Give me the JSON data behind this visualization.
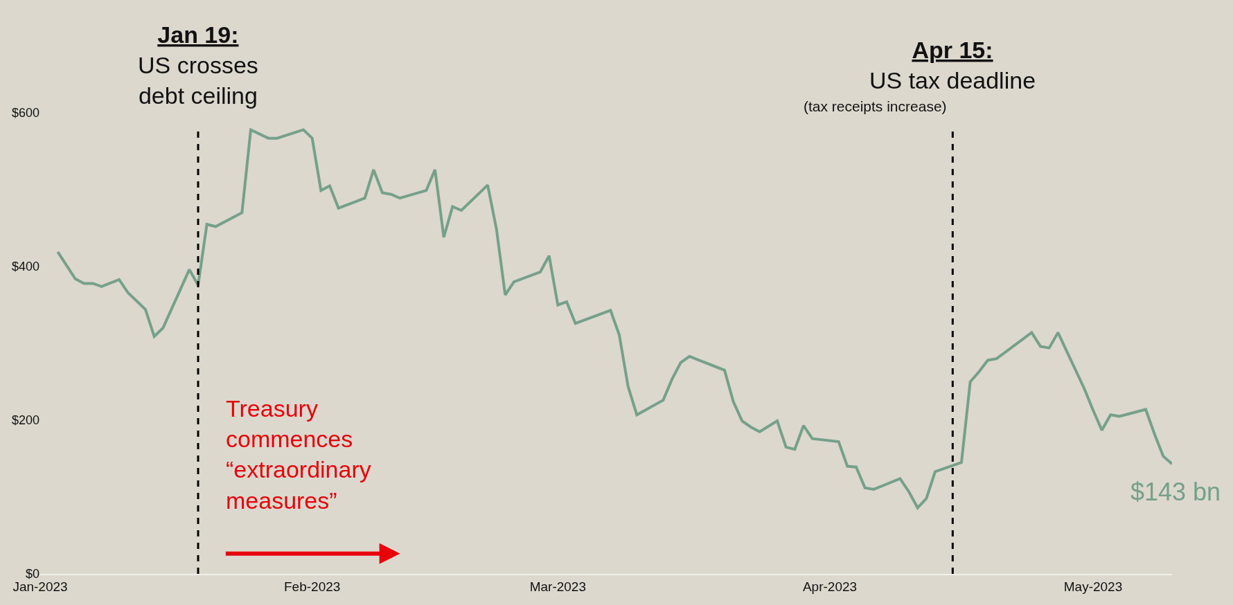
{
  "chart_data": {
    "type": "line",
    "x": [
      "2023-01-03",
      "2023-01-05",
      "2023-01-06",
      "2023-01-07",
      "2023-01-08",
      "2023-01-10",
      "2023-01-11",
      "2023-01-13",
      "2023-01-14",
      "2023-01-15",
      "2023-01-18",
      "2023-01-19",
      "2023-01-20",
      "2023-01-21",
      "2023-01-24",
      "2023-01-25",
      "2023-01-27",
      "2023-01-28",
      "2023-01-31",
      "2023-02-01",
      "2023-02-02",
      "2023-02-03",
      "2023-02-04",
      "2023-02-07",
      "2023-02-08",
      "2023-02-09",
      "2023-02-10",
      "2023-02-11",
      "2023-02-14",
      "2023-02-15",
      "2023-02-16",
      "2023-02-17",
      "2023-02-18",
      "2023-02-21",
      "2023-02-22",
      "2023-02-23",
      "2023-02-24",
      "2023-02-27",
      "2023-02-28",
      "2023-03-01",
      "2023-03-02",
      "2023-03-03",
      "2023-03-07",
      "2023-03-08",
      "2023-03-09",
      "2023-03-10",
      "2023-03-13",
      "2023-03-14",
      "2023-03-15",
      "2023-03-16",
      "2023-03-20",
      "2023-03-21",
      "2023-03-22",
      "2023-03-23",
      "2023-03-24",
      "2023-03-26",
      "2023-03-27",
      "2023-03-28",
      "2023-03-29",
      "2023-03-30",
      "2023-04-02",
      "2023-04-03",
      "2023-04-04",
      "2023-04-05",
      "2023-04-06",
      "2023-04-09",
      "2023-04-10",
      "2023-04-11",
      "2023-04-12",
      "2023-04-13",
      "2023-04-16",
      "2023-04-17",
      "2023-04-18",
      "2023-04-19",
      "2023-04-20",
      "2023-04-24",
      "2023-04-25",
      "2023-04-26",
      "2023-04-27",
      "2023-04-30",
      "2023-05-01",
      "2023-05-02",
      "2023-05-03",
      "2023-05-04",
      "2023-05-07",
      "2023-05-08",
      "2023-05-09",
      "2023-05-10"
    ],
    "series": [
      {
        "color": "#76a08a",
        "values": [
          419,
          384,
          378,
          378,
          374,
          383,
          366,
          344,
          309,
          320,
          396,
          376,
          455,
          452,
          470,
          578,
          567,
          567,
          578,
          567,
          499,
          505,
          476,
          489,
          526,
          496,
          494,
          489,
          499,
          526,
          438,
          478,
          473,
          506,
          449,
          363,
          380,
          393,
          414,
          350,
          354,
          326,
          343,
          311,
          244,
          207,
          226,
          253,
          275,
          283,
          265,
          224,
          199,
          191,
          185,
          199,
          165,
          162,
          193,
          176,
          172,
          140,
          139,
          112,
          110,
          124,
          107,
          86,
          98,
          133,
          145,
          250,
          263,
          278,
          280,
          314,
          296,
          294,
          314,
          241,
          213,
          187,
          207,
          205,
          214,
          182,
          153,
          143
        ]
      }
    ],
    "xlim": [
      "2023-01-01",
      "2023-05-10"
    ],
    "xticks": [
      {
        "value": "2023-01-01",
        "label": "Jan-2023"
      },
      {
        "value": "2023-02-01",
        "label": "Feb-2023"
      },
      {
        "value": "2023-03-01",
        "label": "Mar-2023"
      },
      {
        "value": "2023-04-01",
        "label": "Apr-2023"
      },
      {
        "value": "2023-05-01",
        "label": "May-2023"
      }
    ],
    "ylim": [
      0,
      600
    ],
    "yticks": [
      {
        "value": 0,
        "label": "$0"
      },
      {
        "value": 200,
        "label": "$200"
      },
      {
        "value": 400,
        "label": "$400"
      },
      {
        "value": 600,
        "label": "$600"
      }
    ],
    "grid": false,
    "marker": "none",
    "line_style": "solid",
    "ref_lines": [
      {
        "axis": "x",
        "value": "2023-01-19",
        "label": "Jan 19:\nUS crosses\ndebt ceiling",
        "color": "#000000",
        "line_style": "dashed"
      },
      {
        "axis": "x",
        "value": "2023-04-15",
        "label": "Apr 15:\nUS tax deadline",
        "color": "#000000",
        "line_style": "dashed"
      }
    ],
    "annotations": [
      "Treasury\ncommences\n“extraordinary\nmeasures”",
      "(tax receipts increase)",
      {
        "text": "$143 bn",
        "x": "2023-05-10",
        "y": 143
      }
    ]
  }
}
